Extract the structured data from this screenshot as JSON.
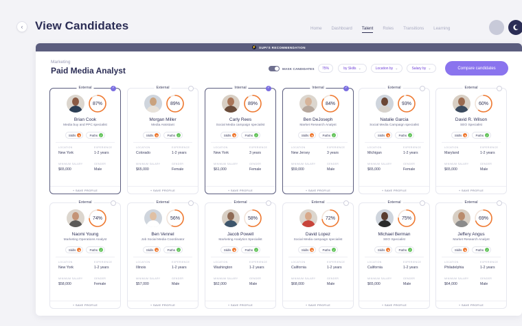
{
  "header": {
    "title": "View Candidates",
    "nav": [
      "Home",
      "Dashboard",
      "Talent",
      "Roles",
      "Transitions",
      "Learning"
    ],
    "active_nav": "Talent"
  },
  "panel": {
    "recommendation": "SUPI'S RECOMMENDATION",
    "subtitle": "Marketing",
    "job_title": "Paid Media Analyst",
    "mask_label": "MASK CANDIDATES",
    "filters": [
      "75%",
      "by Skills",
      "Location by",
      "Salary by"
    ],
    "compare_label": "Compare candidates",
    "save_label": "+ SAVE PROFILE",
    "field_labels": {
      "location": "LOCATION",
      "experience": "EXPERIENCE",
      "salary": "MINIMUM SALARY",
      "gender": "GENDER"
    },
    "skills_label": "Skills",
    "paths_label": "Paths"
  },
  "colors": {
    "accent": "#8a74ee",
    "ring": "#ef7a32",
    "dark": "#2b2d55"
  },
  "candidates": [
    {
      "tag": "External",
      "name": "Brian Cook",
      "role": "Media buy and PPC specialist",
      "score": "87%",
      "score_value": 87,
      "location": "New York",
      "experience": "1-2 years",
      "salary": "$65,000",
      "gender": "Male",
      "selected": true
    },
    {
      "tag": "External",
      "name": "Morgan Miller",
      "role": "Media Assistant",
      "score": "89%",
      "score_value": 89,
      "location": "Colorado",
      "experience": "1-2 years",
      "salary": "$65,000",
      "gender": "Female",
      "selected": false
    },
    {
      "tag": "Internal",
      "name": "Carly Rees",
      "role": "Social Media campaign specialist",
      "score": "89%",
      "score_value": 89,
      "location": "New York",
      "experience": "3 years",
      "salary": "$61,000",
      "gender": "Female",
      "selected": true
    },
    {
      "tag": "Internal",
      "name": "Ben DeJoseph",
      "role": "Market Research Analyst",
      "score": "84%",
      "score_value": 84,
      "location": "New Jersey",
      "experience": "3 years",
      "salary": "$59,000",
      "gender": "Male",
      "selected": true
    },
    {
      "tag": "External",
      "name": "Natalie Garcia",
      "role": "Social Media Campaign specialist",
      "score": "93%",
      "score_value": 93,
      "location": "Michigan",
      "experience": "1-2 years",
      "salary": "$65,000",
      "gender": "Female",
      "selected": false
    },
    {
      "tag": "External",
      "name": "David R. Wilson",
      "role": "SEO Specialist",
      "score": "60%",
      "score_value": 60,
      "location": "Maryland",
      "experience": "1-2 years",
      "salary": "$65,000",
      "gender": "Male",
      "selected": false
    },
    {
      "tag": "External",
      "name": "Naomi Young",
      "role": "Marketing Operations Analyst",
      "score": "74%",
      "score_value": 74,
      "location": "New York",
      "experience": "1-2 years",
      "salary": "$58,000",
      "gender": "Female",
      "selected": false
    },
    {
      "tag": "External",
      "name": "Ben Vennel",
      "role": "Job Social Media Coordinator",
      "score": "56%",
      "score_value": 56,
      "location": "Illinois",
      "experience": "1-2 years",
      "salary": "$57,000",
      "gender": "Male",
      "selected": false
    },
    {
      "tag": "External",
      "name": "Jacob Powell",
      "role": "Marketing Analytics Specialist",
      "score": "58%",
      "score_value": 58,
      "location": "Washington",
      "experience": "1-2 years",
      "salary": "$62,000",
      "gender": "Male",
      "selected": false
    },
    {
      "tag": "External",
      "name": "David Lopez",
      "role": "Social Media campaign specialist",
      "score": "72%",
      "score_value": 72,
      "location": "California",
      "experience": "1-2 years",
      "salary": "$68,000",
      "gender": "Male",
      "selected": false
    },
    {
      "tag": "External",
      "name": "Michael Berman",
      "role": "SEO Specialist",
      "score": "75%",
      "score_value": 75,
      "location": "California",
      "experience": "1-2 years",
      "salary": "$65,000",
      "gender": "Male",
      "selected": false
    },
    {
      "tag": "External",
      "name": "Jeffery Angus",
      "role": "Market Research Analyst",
      "score": "69%",
      "score_value": 69,
      "location": "Philadelphia",
      "experience": "1-2 years",
      "salary": "$64,000",
      "gender": "Male",
      "selected": false
    }
  ]
}
